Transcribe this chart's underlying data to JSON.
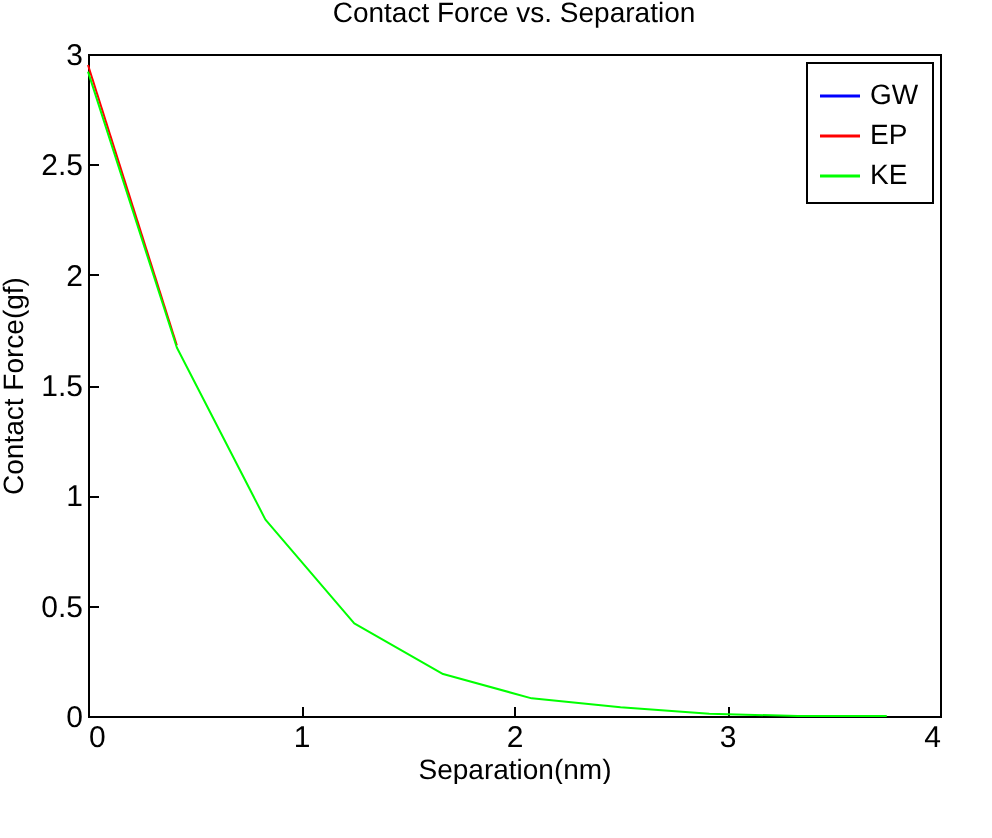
{
  "chart_data": {
    "type": "line",
    "title": "Contact Force vs. Separation",
    "xlabel": "Separation(nm)",
    "ylabel": "Contact Force(gf)",
    "x": [
      0,
      0.417,
      0.833,
      1.25,
      1.667,
      2.083,
      2.5,
      2.917,
      3.333,
      3.75
    ],
    "series": [
      {
        "name": "GW",
        "color": "#0000ff",
        "values": [
          null,
          null,
          null,
          null,
          null,
          null,
          null,
          null,
          null,
          null
        ]
      },
      {
        "name": "EP",
        "color": "#ff0000",
        "values": [
          2.95,
          1.68,
          null,
          null,
          null,
          null,
          null,
          null,
          null,
          null
        ]
      },
      {
        "name": "KE",
        "color": "#00ff00",
        "values": [
          2.92,
          1.67,
          0.89,
          0.42,
          0.19,
          0.08,
          0.04,
          0.01,
          0,
          0
        ]
      }
    ],
    "xlim": [
      0,
      4
    ],
    "xticks": [
      0,
      1,
      2,
      3,
      4
    ],
    "ylim": [
      0,
      3
    ],
    "yticks": [
      0,
      0.5,
      1,
      1.5,
      2,
      2.5,
      3
    ],
    "grid": false,
    "legend": "top right",
    "marker": "none",
    "line_style": "solid"
  }
}
